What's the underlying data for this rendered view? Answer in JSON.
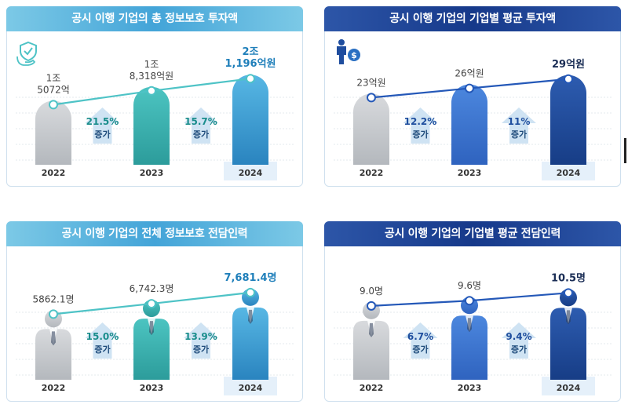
{
  "chart_data": [
    {
      "type": "bar",
      "title": "공시 이행 기업의 총 정보보호 투자액",
      "theme": "teal",
      "icon": "hands-shield-icon",
      "categories": [
        "2022",
        "2023",
        "2024"
      ],
      "values": [
        1.5072,
        1.8318,
        2.1196
      ],
      "ylim": [
        0,
        2.4
      ],
      "value_labels": [
        "1조\n5072억",
        "1조\n8,318억원",
        "2조\n1,196억원"
      ],
      "growth": [
        {
          "pct": "21.5%",
          "label": "증가"
        },
        {
          "pct": "15.7%",
          "label": "증가"
        }
      ]
    },
    {
      "type": "bar",
      "title": "공시 이행 기업의 기업별 평균 투자액",
      "theme": "navy",
      "icon": "person-money-icon",
      "categories": [
        "2022",
        "2023",
        "2024"
      ],
      "values": [
        23,
        26,
        29
      ],
      "ylim": [
        0,
        33
      ],
      "value_labels": [
        "23억원",
        "26억원",
        "29억원"
      ],
      "growth": [
        {
          "pct": "12.2%",
          "label": "증가"
        },
        {
          "pct": "11%",
          "label": "증가"
        }
      ]
    },
    {
      "type": "bar",
      "title": "공시 이행 기업의 전체 정보보호 전담인력",
      "theme": "teal",
      "icon": "",
      "categories": [
        "2022",
        "2023",
        "2024"
      ],
      "values": [
        5862.1,
        6742.3,
        7681.4
      ],
      "ylim": [
        0,
        8600
      ],
      "value_labels": [
        "5862.1명",
        "6,742.3명",
        "7,681.4명"
      ],
      "growth": [
        {
          "pct": "15.0%",
          "label": "증가"
        },
        {
          "pct": "13.9%",
          "label": "증가"
        }
      ]
    },
    {
      "type": "bar",
      "title": "공시 이행 기업의 기업별 평균 전담인력",
      "theme": "navy",
      "icon": "",
      "categories": [
        "2022",
        "2023",
        "2024"
      ],
      "values": [
        9.0,
        9.6,
        10.5
      ],
      "ylim": [
        0,
        11.8
      ],
      "value_labels": [
        "9.0명",
        "9.6명",
        "10.5명"
      ],
      "growth": [
        {
          "pct": "6.7%",
          "label": "증가"
        },
        {
          "pct": "9.4%",
          "label": "증가"
        }
      ]
    }
  ],
  "colors": {
    "gray": "#c5c8cc",
    "teal_2023": "#3fb7b5",
    "teal_2024": "#3ea2d6",
    "navy_2023": "#3c79d4",
    "navy_2024": "#1f4d9e",
    "teal_line": "#4ec3c6",
    "navy_line": "#2458b8",
    "arrow": "#cfe3f3",
    "pct_teal": "#1a8d8c",
    "pct_navy": "#1e4e9e"
  }
}
